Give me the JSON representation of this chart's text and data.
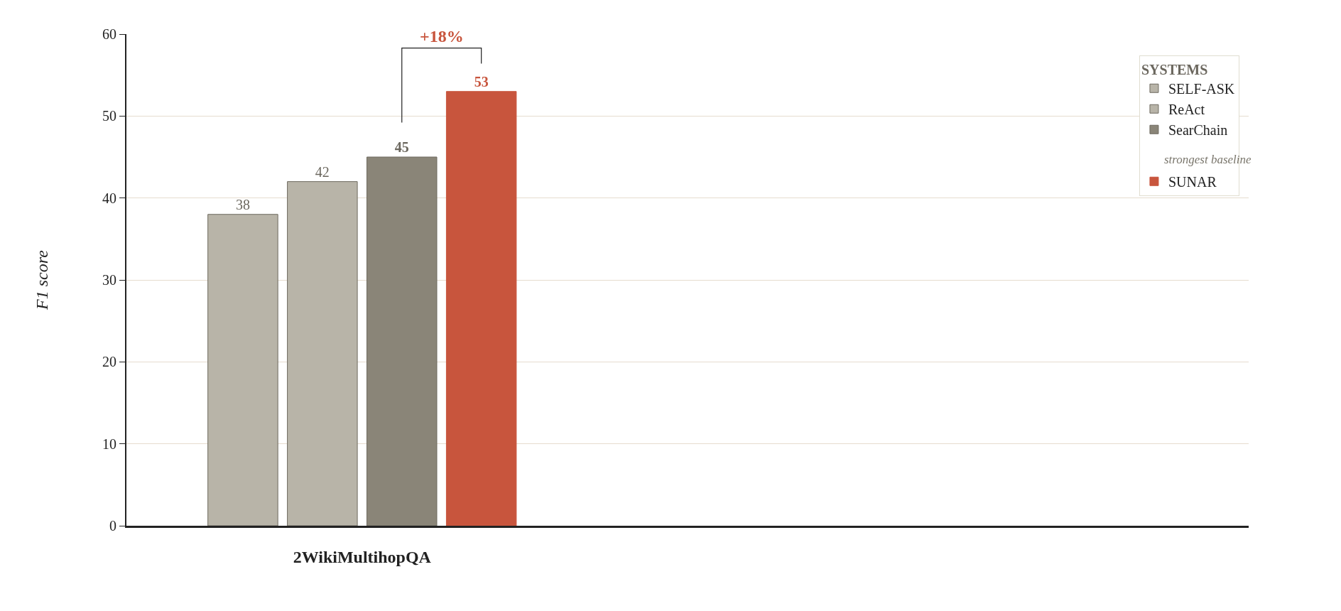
{
  "chart_data": {
    "type": "bar",
    "ylabel": "F1 score",
    "legend_title": "SYSTEMS",
    "categories": [
      "2WikiMultihopQA"
    ],
    "series": [
      {
        "name": "SELF-ASK",
        "color": "#b8b4a8",
        "values": [
          38
        ]
      },
      {
        "name": "ReAct",
        "color": "#b8b4a8",
        "values": [
          42
        ]
      },
      {
        "name": "SearChain",
        "color": "#8a8578",
        "values": [
          45
        ]
      },
      {
        "name": "SUNAR",
        "color": "#c8553d",
        "values": [
          53
        ]
      }
    ],
    "ylim": [
      0,
      60
    ],
    "yticks": [
      0,
      10,
      20,
      30,
      40,
      50,
      60
    ],
    "grid": "y",
    "legend": "top right",
    "data_labels": true,
    "annotations": [
      "+18%",
      "strongest baseline"
    ]
  }
}
